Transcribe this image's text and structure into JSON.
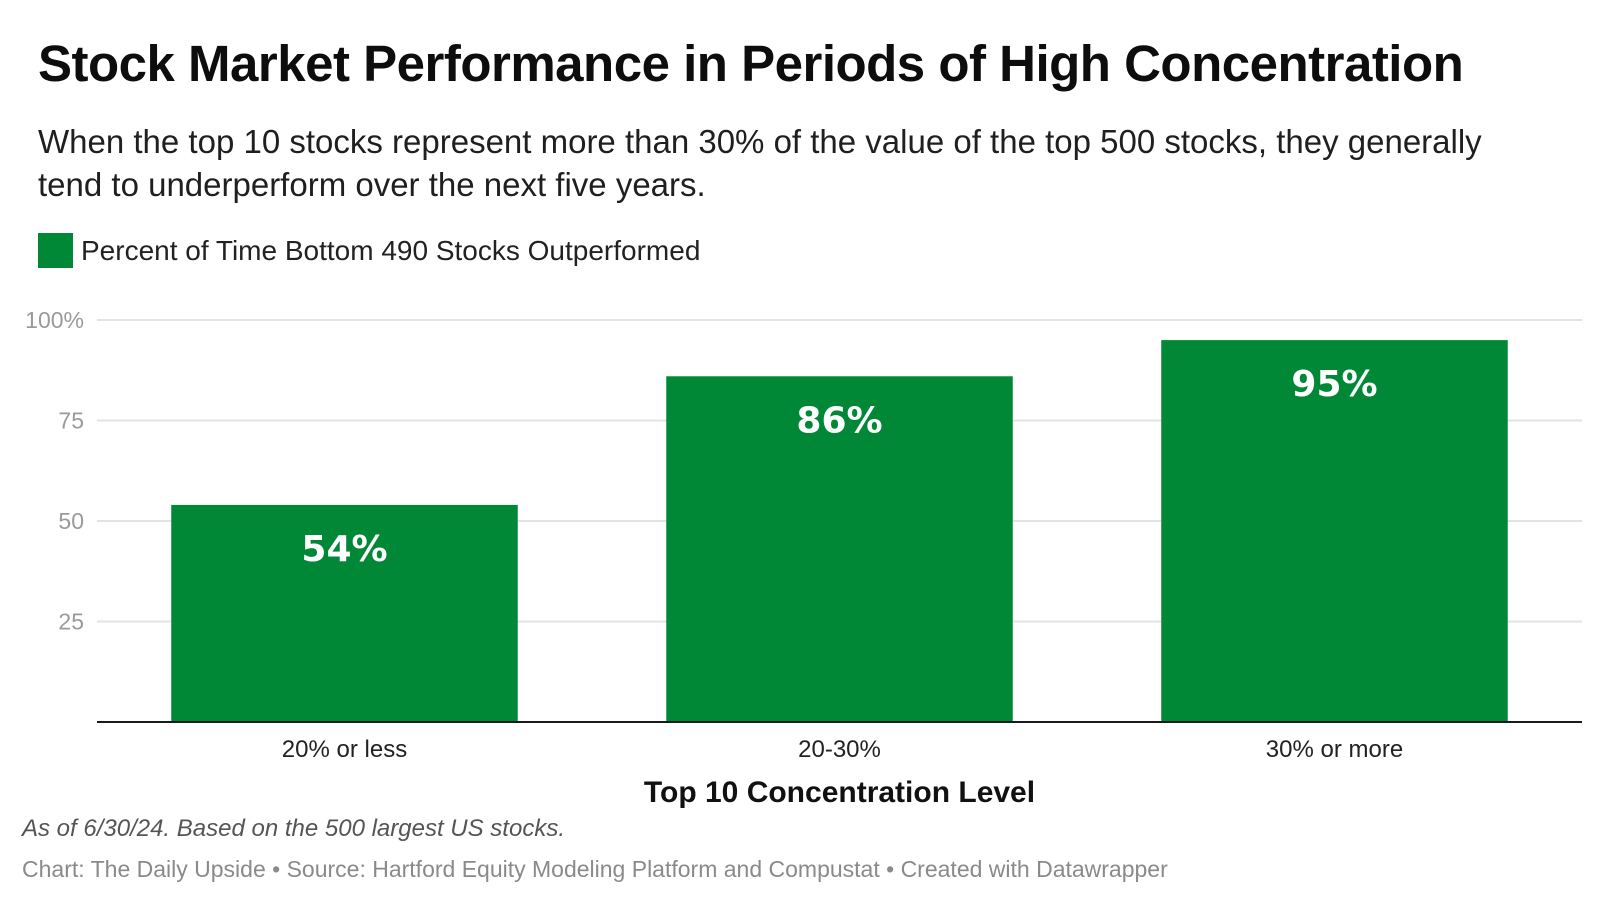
{
  "chart_data": {
    "type": "bar",
    "title": "Stock Market Performance in Periods of High Concentration",
    "subtitle": "When the top 10 stocks represent more than 30% of the value of the top 500 stocks, they generally tend to underperform over the next five years.",
    "categories": [
      "20% or less",
      "20-30%",
      "30% or more"
    ],
    "series": [
      {
        "name": "Percent of Time Bottom 490 Stocks Outperformed",
        "values": [
          54,
          86,
          95
        ],
        "color": "#008837"
      }
    ],
    "data_labels": [
      "54%",
      "86%",
      "95%"
    ],
    "xlabel": "Top 10 Concentration Level",
    "ylabel": "",
    "ylim": [
      0,
      100
    ],
    "yticks": [
      25,
      50,
      75,
      100
    ],
    "ytick_labels": [
      "25",
      "50",
      "75",
      "100%"
    ],
    "grid": true,
    "legend_position": "top-left",
    "note": "As of 6/30/24. Based on the 500 largest US stocks.",
    "credit": "Chart: The Daily Upside • Source: Hartford Equity Modeling Platform and Compustat • Created with Datawrapper"
  },
  "colors": {
    "bar": "#008837",
    "gridline": "#e3e3e3",
    "baseline": "#1a1a1a"
  }
}
